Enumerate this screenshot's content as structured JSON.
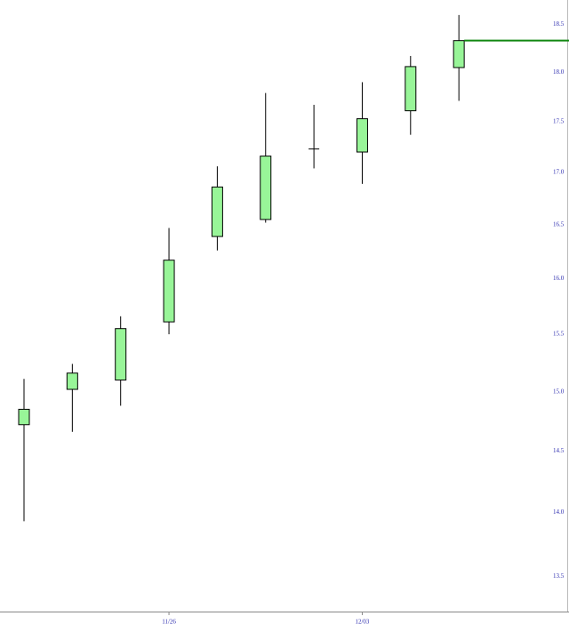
{
  "chart_data": {
    "type": "candlestick",
    "categories": [
      null,
      null,
      null,
      "11/26",
      null,
      null,
      null,
      "12/03",
      null,
      null
    ],
    "open": [
      14.72,
      15.02,
      15.1,
      15.61,
      16.39,
      16.55,
      17.23,
      17.2,
      17.61,
      18.05
    ],
    "high": [
      15.11,
      15.24,
      15.66,
      16.47,
      17.06,
      17.79,
      17.67,
      17.9,
      18.17,
      18.6
    ],
    "low": [
      13.93,
      14.66,
      14.88,
      15.5,
      16.26,
      16.52,
      17.04,
      16.89,
      17.37,
      17.71
    ],
    "close": [
      14.85,
      15.16,
      15.55,
      16.17,
      16.86,
      17.16,
      17.23,
      17.53,
      18.06,
      18.33
    ],
    "up_color": "#98f598",
    "last_price": 18.33,
    "last_price_color": "#118811",
    "log_scale": true,
    "ylim": [
      13.23,
      18.76
    ],
    "yticks": [
      13.5,
      {
        "value": 14,
        "label": "14.0"
      },
      14.5,
      {
        "value": 15,
        "label": "15.0"
      },
      15.5,
      {
        "value": 16,
        "label": "16.0"
      },
      16.5,
      {
        "value": 17,
        "label": "17.0"
      },
      17.5,
      {
        "value": 18,
        "label": "18.0"
      },
      18.5
    ]
  }
}
